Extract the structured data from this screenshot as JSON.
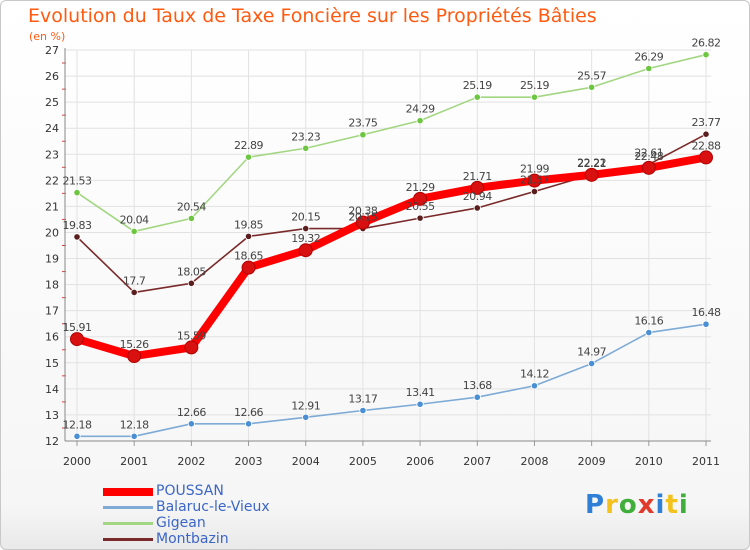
{
  "title": "Evolution du Taux de Taxe Foncière sur les Propriétés Bâties",
  "subtitle": "(en %)",
  "logo": {
    "text": "Proxiti",
    "colors": [
      "#2f7fd6",
      "#f3c21c",
      "#3fae3a",
      "#e23a2a",
      "#2f7fd6",
      "#f3c21c",
      "#3fae3a"
    ]
  },
  "chart_data": {
    "type": "line",
    "title": "Evolution du Taux de Taxe Foncière sur les Propriétés Bâties",
    "ylabel": "(en %)",
    "x": [
      "2000",
      "2001",
      "2002",
      "2003",
      "2004",
      "2005",
      "2006",
      "2007",
      "2008",
      "2009",
      "2010",
      "2011"
    ],
    "ylim": [
      12,
      27
    ],
    "yticks": [
      "12",
      "13",
      "14",
      "15",
      "16",
      "17",
      "18",
      "19",
      "20",
      "21",
      "22",
      "23",
      "24",
      "25",
      "26",
      "27"
    ],
    "grid": true,
    "legend": "bottom-left",
    "series": [
      {
        "name": "POUSSAN",
        "color": "#ff0000",
        "marker": "#d81010",
        "values": [
          15.91,
          15.26,
          15.59,
          18.65,
          19.32,
          20.38,
          21.29,
          21.71,
          21.99,
          22.21,
          22.48,
          22.88
        ],
        "labels": [
          "15.91",
          "15.26",
          "15.59",
          "18.65",
          "19.32",
          "20.38",
          "21.29",
          "21.71",
          "21.99",
          "22.21",
          "22.48",
          "22.88"
        ]
      },
      {
        "name": "Balaruc-le-Vieux",
        "color": "#7eaad6",
        "marker": "#4a8fd4",
        "values": [
          12.18,
          12.18,
          12.66,
          12.66,
          12.91,
          13.17,
          13.41,
          13.68,
          14.12,
          14.97,
          16.16,
          16.48
        ],
        "labels": [
          "12.18",
          "12.18",
          "12.66",
          "12.66",
          "12.91",
          "13.17",
          "13.41",
          "13.68",
          "14.12",
          "14.97",
          "16.16",
          "16.48"
        ]
      },
      {
        "name": "Gigean",
        "color": "#a3d682",
        "marker": "#6cc640",
        "values": [
          21.53,
          20.04,
          20.54,
          22.89,
          23.23,
          23.75,
          24.29,
          25.19,
          25.19,
          25.57,
          26.29,
          26.82
        ],
        "labels": [
          "21.53",
          "20.04",
          "20.54",
          "22.89",
          "23.23",
          "23.75",
          "24.29",
          "25.19",
          "25.19",
          "25.57",
          "26.29",
          "26.82"
        ]
      },
      {
        "name": "Montbazin",
        "color": "#7a2a2a",
        "marker": "#5a1e1e",
        "values": [
          19.83,
          17.7,
          18.05,
          19.85,
          20.15,
          20.15,
          20.55,
          20.94,
          21.57,
          22.22,
          22.61,
          23.77
        ],
        "labels": [
          "19.83",
          "17.7",
          "18.05",
          "19.85",
          "20.15",
          "20.15",
          "20.55",
          "20.94",
          "21.57",
          "22.22",
          "22.61",
          "23.77"
        ]
      }
    ]
  }
}
